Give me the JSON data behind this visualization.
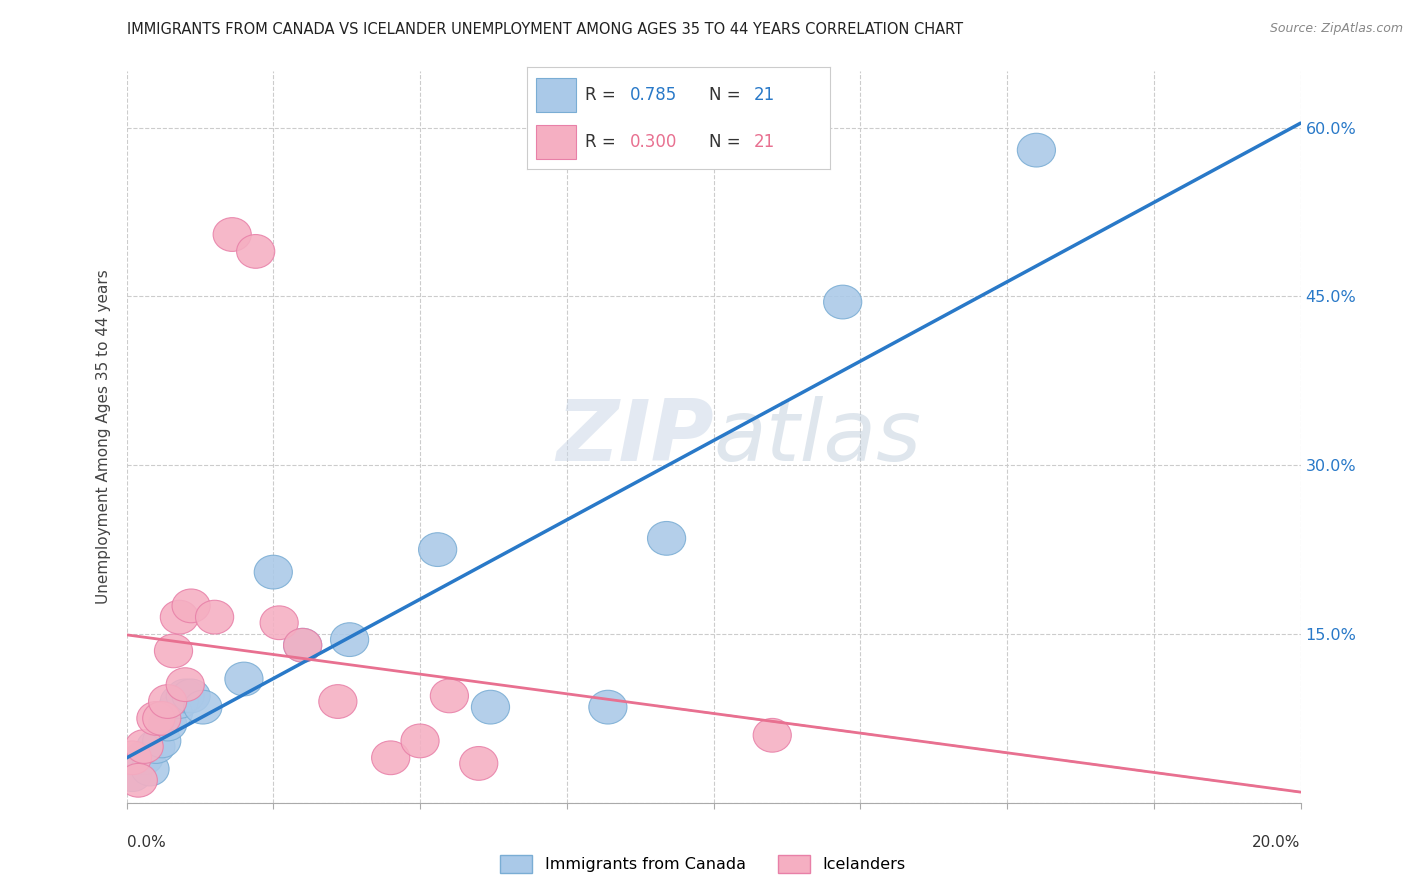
{
  "title": "IMMIGRANTS FROM CANADA VS ICELANDER UNEMPLOYMENT AMONG AGES 35 TO 44 YEARS CORRELATION CHART",
  "source": "Source: ZipAtlas.com",
  "ylabel": "Unemployment Among Ages 35 to 44 years",
  "x_min": 0.0,
  "x_max": 0.2,
  "y_min": 0.0,
  "y_max": 0.65,
  "ytick_labels": [
    "",
    "15.0%",
    "30.0%",
    "45.0%",
    "60.0%"
  ],
  "ytick_values": [
    0.0,
    0.15,
    0.3,
    0.45,
    0.6
  ],
  "blue_R": "0.785",
  "blue_N": "21",
  "pink_R": "0.300",
  "pink_N": "21",
  "blue_scatter_color": "#aac9e8",
  "pink_scatter_color": "#f5afc2",
  "blue_scatter_edge": "#7aadd4",
  "pink_scatter_edge": "#e880a8",
  "blue_line_color": "#2979c8",
  "pink_line_color": "#e87090",
  "grid_color": "#cccccc",
  "watermark_color": "#ccd8e8",
  "blue_x": [
    0.001,
    0.003,
    0.004,
    0.005,
    0.006,
    0.007,
    0.008,
    0.009,
    0.01,
    0.011,
    0.013,
    0.02,
    0.025,
    0.03,
    0.038,
    0.053,
    0.062,
    0.082,
    0.092,
    0.122,
    0.155
  ],
  "blue_y": [
    0.025,
    0.04,
    0.03,
    0.05,
    0.055,
    0.07,
    0.08,
    0.09,
    0.095,
    0.095,
    0.085,
    0.11,
    0.205,
    0.14,
    0.145,
    0.225,
    0.085,
    0.085,
    0.235,
    0.445,
    0.58
  ],
  "pink_x": [
    0.001,
    0.002,
    0.003,
    0.005,
    0.006,
    0.007,
    0.008,
    0.009,
    0.01,
    0.011,
    0.015,
    0.018,
    0.022,
    0.026,
    0.03,
    0.036,
    0.045,
    0.05,
    0.06,
    0.055,
    0.11
  ],
  "pink_y": [
    0.04,
    0.02,
    0.05,
    0.075,
    0.075,
    0.09,
    0.135,
    0.165,
    0.105,
    0.175,
    0.165,
    0.505,
    0.49,
    0.16,
    0.14,
    0.09,
    0.04,
    0.055,
    0.035,
    0.095,
    0.06
  ],
  "legend_label_blue": "Immigrants from Canada",
  "legend_label_pink": "Icelanders",
  "xtick_positions": [
    0.0,
    0.025,
    0.05,
    0.075,
    0.1,
    0.125,
    0.15,
    0.175,
    0.2
  ]
}
